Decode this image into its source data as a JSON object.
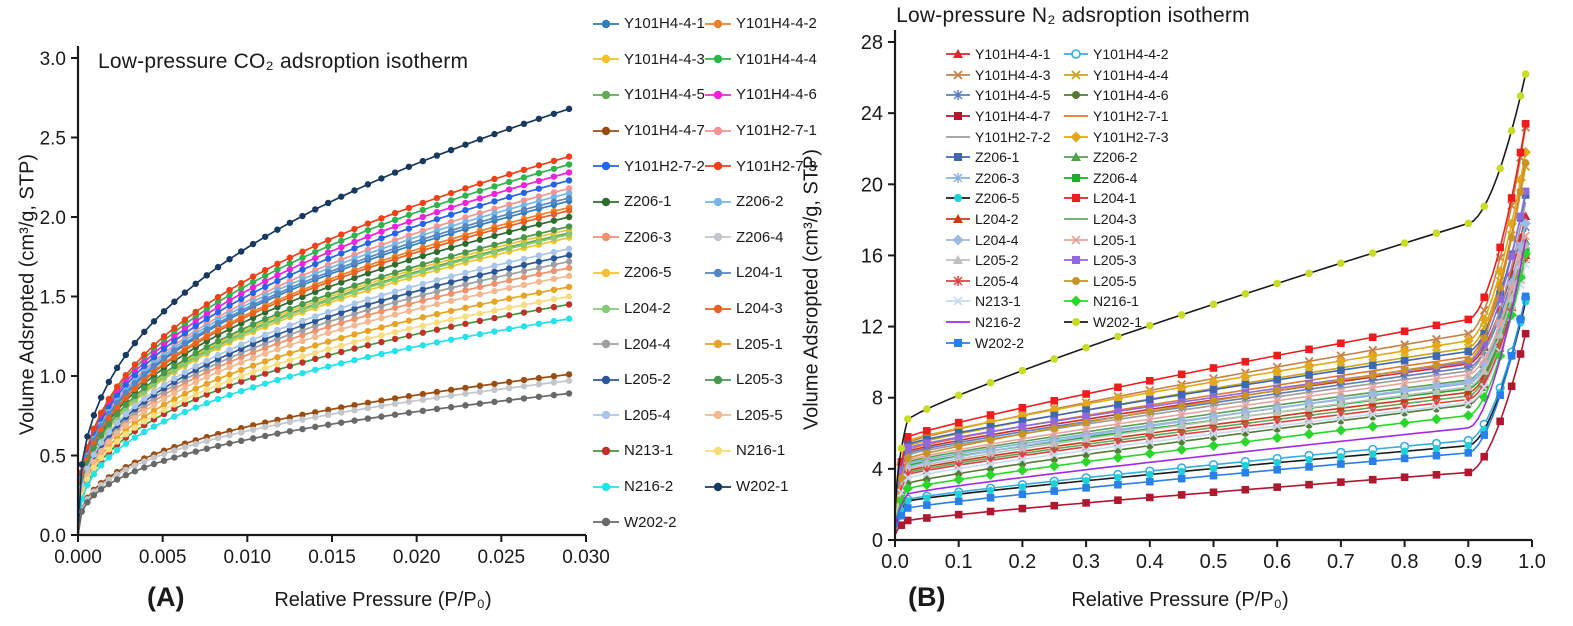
{
  "figure": {
    "panel_a": {
      "label": "(A)",
      "title": "Low-pressure CO₂ adsroption isotherm",
      "xlabel": "Relative Pressure (P/P₀)",
      "ylabel": "Volume Adsropted (cm³/g, STP)"
    },
    "panel_b": {
      "label": "(B)",
      "title": "Low-pressure N₂ adsroption isotherm",
      "xlabel": "Relative Pressure (P/P₀)",
      "ylabel": "Volume Adsropted (cm³/g, STP)"
    }
  },
  "chart_data": [
    {
      "panel": "A",
      "type": "line",
      "title": "Low-pressure CO₂ adsroption isotherm",
      "xlabel": "Relative Pressure (P/P₀)",
      "ylabel": "Volume Adsropted (cm³/g, STP)",
      "xlim": [
        0,
        0.03
      ],
      "ylim": [
        0,
        3.0
      ],
      "x_ticks": [
        0,
        0.005,
        0.01,
        0.015,
        0.02,
        0.025,
        0.03
      ],
      "x_tick_labels": [
        "0.000",
        "0.005",
        "0.010",
        "0.015",
        "0.020",
        "0.025",
        "0.030"
      ],
      "y_ticks": [
        0,
        0.5,
        1.0,
        1.5,
        2.0,
        2.5,
        3.0
      ],
      "y_tick_labels": [
        "0.0",
        "0.5",
        "1.0",
        "1.5",
        "2.0",
        "2.5",
        "3.0"
      ],
      "grid": false,
      "legend_position": "right-of-plot",
      "marker_note": "all series drawn with small filled circles; curves rise steeply from origin then flatten (power-law shape y = y_end*(x/0.029)^0.37)",
      "x_sample": [
        0.001,
        0.005,
        0.01,
        0.02,
        0.029
      ],
      "series": [
        {
          "name": "Y101H4-4-1",
          "color": "#2E7EC2",
          "marker": "circle",
          "y": [
            0.6,
            1.1,
            1.42,
            1.83,
            2.1
          ]
        },
        {
          "name": "Y101H4-4-2",
          "color": "#F07F28",
          "marker": "circle",
          "y": [
            0.59,
            1.08,
            1.39,
            1.79,
            2.06
          ]
        },
        {
          "name": "Y101H4-4-3",
          "color": "#F2C226",
          "marker": "circle",
          "y": [
            0.54,
            0.98,
            1.26,
            1.63,
            1.87
          ]
        },
        {
          "name": "Y101H4-4-4",
          "color": "#2DB44A",
          "marker": "circle",
          "y": [
            0.67,
            1.22,
            1.57,
            2.03,
            2.33
          ]
        },
        {
          "name": "Y101H4-4-5",
          "color": "#62AA56",
          "marker": "circle",
          "y": [
            0.55,
            0.99,
            1.28,
            1.65,
            1.9
          ]
        },
        {
          "name": "Y101H4-4-6",
          "color": "#EE22DD",
          "marker": "circle",
          "y": [
            0.66,
            1.19,
            1.54,
            1.99,
            2.28
          ]
        },
        {
          "name": "Y101H4-4-7",
          "color": "#9A4D12",
          "marker": "circle",
          "y": [
            0.29,
            0.53,
            0.68,
            0.88,
            1.01
          ]
        },
        {
          "name": "Y101H2-7-1",
          "color": "#F49391",
          "marker": "circle",
          "y": [
            0.63,
            1.14,
            1.47,
            1.9,
            2.18
          ]
        },
        {
          "name": "Y101H2-7-2",
          "color": "#2465E8",
          "marker": "circle",
          "y": [
            0.64,
            1.16,
            1.5,
            1.94,
            2.23
          ]
        },
        {
          "name": "Y101H2-7-3",
          "color": "#F04018",
          "marker": "circle",
          "y": [
            0.69,
            1.24,
            1.6,
            2.07,
            2.38
          ]
        },
        {
          "name": "Z206-1",
          "color": "#2D6B2F",
          "marker": "circle",
          "y": [
            0.58,
            1.04,
            1.35,
            1.74,
            2.0
          ]
        },
        {
          "name": "Z206-2",
          "color": "#74B6E8",
          "marker": "circle",
          "y": [
            0.62,
            1.12,
            1.45,
            1.87,
            2.15
          ]
        },
        {
          "name": "Z206-3",
          "color": "#F0916B",
          "marker": "circle",
          "y": [
            0.48,
            0.88,
            1.13,
            1.46,
            1.68
          ]
        },
        {
          "name": "Z206-4",
          "color": "#C3C7CB",
          "marker": "circle",
          "y": [
            0.28,
            0.51,
            0.65,
            0.84,
            0.97
          ]
        },
        {
          "name": "Z206-5",
          "color": "#F4C22E",
          "marker": "circle",
          "y": [
            0.55,
            1.0,
            1.29,
            1.67,
            1.92
          ]
        },
        {
          "name": "L204-1",
          "color": "#5586C6",
          "marker": "circle",
          "y": [
            0.61,
            1.11,
            1.43,
            1.85,
            2.12
          ]
        },
        {
          "name": "L204-2",
          "color": "#85CB77",
          "marker": "circle",
          "y": [
            0.54,
            0.99,
            1.27,
            1.65,
            1.89
          ]
        },
        {
          "name": "L204-3",
          "color": "#E8611E",
          "marker": "circle",
          "y": [
            0.59,
            1.06,
            1.38,
            1.78,
            2.04
          ]
        },
        {
          "name": "L204-4",
          "color": "#9CA0A4",
          "marker": "circle",
          "y": [
            0.5,
            0.9,
            1.16,
            1.5,
            1.72
          ]
        },
        {
          "name": "L205-1",
          "color": "#E8A224",
          "marker": "circle",
          "y": [
            0.45,
            0.81,
            1.05,
            1.36,
            1.56
          ]
        },
        {
          "name": "L205-2",
          "color": "#2B579D",
          "marker": "circle",
          "y": [
            0.51,
            0.92,
            1.19,
            1.53,
            1.76
          ]
        },
        {
          "name": "L205-3",
          "color": "#47984C",
          "marker": "circle",
          "y": [
            0.56,
            1.01,
            1.31,
            1.69,
            1.94
          ]
        },
        {
          "name": "L205-4",
          "color": "#AAC6E8",
          "marker": "circle",
          "y": [
            0.52,
            0.94,
            1.21,
            1.57,
            1.8
          ]
        },
        {
          "name": "L205-5",
          "color": "#F3B88F",
          "marker": "circle",
          "y": [
            0.47,
            0.85,
            1.1,
            1.42,
            1.63
          ]
        },
        {
          "name": "N213-1",
          "color": "#3C9C3C",
          "marker_color": "#C23128",
          "marker": "circle",
          "y": [
            0.42,
            0.76,
            0.98,
            1.26,
            1.45
          ]
        },
        {
          "name": "N216-1",
          "color": "#F8DD7C",
          "marker": "circle",
          "y": [
            0.43,
            0.78,
            1.01,
            1.31,
            1.5
          ]
        },
        {
          "name": "N216-2",
          "color": "#22E2EA",
          "marker": "circle",
          "y": [
            0.39,
            0.71,
            0.92,
            1.18,
            1.36
          ]
        },
        {
          "name": "W202-1",
          "color": "#17395F",
          "marker": "circle",
          "y": [
            0.77,
            1.4,
            1.81,
            2.33,
            2.68
          ]
        },
        {
          "name": "W202-2",
          "color": "#696969",
          "marker": "circle",
          "y": [
            0.26,
            0.46,
            0.6,
            0.78,
            0.89
          ]
        }
      ]
    },
    {
      "panel": "B",
      "type": "line",
      "title": "Low-pressure N₂ adsroption isotherm",
      "xlabel": "Relative Pressure (P/P₀)",
      "ylabel": "Volume Adsropted (cm³/g, STP)",
      "xlim": [
        0,
        1.0
      ],
      "ylim": [
        0,
        28
      ],
      "x_ticks": [
        0,
        0.1,
        0.2,
        0.3,
        0.4,
        0.5,
        0.6,
        0.7,
        0.8,
        0.9,
        1.0
      ],
      "x_tick_labels": [
        "0.0",
        "0.1",
        "0.2",
        "0.3",
        "0.4",
        "0.5",
        "0.6",
        "0.7",
        "0.8",
        "0.9",
        "1.0"
      ],
      "y_ticks": [
        0,
        4,
        8,
        12,
        16,
        20,
        24,
        28
      ],
      "y_tick_labels": [
        "0",
        "4",
        "8",
        "12",
        "16",
        "20",
        "24",
        "28"
      ],
      "grid": false,
      "legend_position": "upper-left-inside",
      "marker_note": "type-II isotherms: steep rise below P/P0=0.02, slow plateau, sharp upswing above 0.9 ending at 0.99",
      "x_sample": [
        0.02,
        0.1,
        0.3,
        0.5,
        0.7,
        0.9,
        0.99
      ],
      "series": [
        {
          "name": "Y101H4-4-1",
          "color": "#D42A2A",
          "marker": "triangle",
          "y": [
            5.0,
            5.6,
            6.8,
            7.9,
            8.9,
            9.9,
            18.2
          ]
        },
        {
          "name": "Y101H4-4-2",
          "color": "#35AEE2",
          "marker": "circleOpen",
          "y": [
            2.3,
            2.7,
            3.5,
            4.2,
            4.9,
            5.6,
            13.6
          ]
        },
        {
          "name": "Y101H4-4-3",
          "color": "#C98048",
          "marker": "x",
          "y": [
            5.5,
            6.2,
            7.7,
            9.1,
            10.4,
            11.6,
            23.2
          ]
        },
        {
          "name": "Y101H4-4-4",
          "color": "#CDA418",
          "marker": "x",
          "y": [
            5.3,
            6.0,
            7.3,
            8.5,
            9.7,
            10.8,
            21.0
          ]
        },
        {
          "name": "Y101H4-4-5",
          "color": "#5B7FBE",
          "marker": "asterisk",
          "y": [
            4.9,
            5.5,
            6.7,
            7.7,
            8.7,
            9.7,
            17.6
          ]
        },
        {
          "name": "Y101H4-4-6",
          "color": "#557A32",
          "marker": "circle",
          "y": [
            3.2,
            3.7,
            4.8,
            5.8,
            6.7,
            7.6,
            16.3
          ]
        },
        {
          "name": "Y101H4-4-7",
          "color": "#B01830",
          "marker": "square",
          "y": [
            1.1,
            1.4,
            2.1,
            2.7,
            3.3,
            3.8,
            11.6
          ]
        },
        {
          "name": "Y101H2-7-1",
          "color": "#E07830",
          "marker": "none",
          "y": [
            5.1,
            5.7,
            7.0,
            8.2,
            9.2,
            10.3,
            21.4
          ]
        },
        {
          "name": "Y101H2-7-2",
          "color": "#9B9B9B",
          "marker": "none",
          "y": [
            4.8,
            5.4,
            6.5,
            7.6,
            8.5,
            9.5,
            19.0
          ]
        },
        {
          "name": "Y101H2-7-3",
          "color": "#E2A818",
          "marker": "diamond",
          "y": [
            5.6,
            6.3,
            7.6,
            8.9,
            10.1,
            11.2,
            21.8
          ]
        },
        {
          "name": "Z206-1",
          "color": "#3E68B2",
          "marker": "square",
          "y": [
            5.4,
            6.0,
            7.3,
            8.5,
            9.5,
            10.6,
            19.4
          ]
        },
        {
          "name": "Z206-2",
          "color": "#52A050",
          "marker": "triangle",
          "y": [
            4.4,
            5.0,
            6.1,
            7.1,
            8.1,
            9.0,
            16.8
          ]
        },
        {
          "name": "Z206-3",
          "color": "#85B3DE",
          "marker": "asterisk",
          "y": [
            4.3,
            4.8,
            5.9,
            6.9,
            7.9,
            8.8,
            16.5
          ]
        },
        {
          "name": "Z206-4",
          "color": "#18B028",
          "marker": "square",
          "y": [
            4.2,
            4.7,
            5.8,
            6.7,
            7.6,
            8.5,
            16.2
          ]
        },
        {
          "name": "Z206-5",
          "color": "#20D0D8",
          "line_color": "#1a1a1a",
          "marker": "circle",
          "y": [
            2.2,
            2.6,
            3.3,
            4.0,
            4.7,
            5.3,
            13.4
          ]
        },
        {
          "name": "L204-1",
          "color": "#EE1C1C",
          "marker": "square",
          "y": [
            5.8,
            6.6,
            8.2,
            9.7,
            11.1,
            12.4,
            23.4
          ]
        },
        {
          "name": "L204-2",
          "color": "#CC3A14",
          "marker": "triangle",
          "y": [
            3.9,
            4.4,
            5.5,
            6.5,
            7.4,
            8.3,
            16.0
          ]
        },
        {
          "name": "L204-3",
          "color": "#60A860",
          "marker": "none",
          "y": [
            3.8,
            4.3,
            5.4,
            6.3,
            7.2,
            8.1,
            16.4
          ]
        },
        {
          "name": "L204-4",
          "color": "#9DB8E2",
          "marker": "diamond",
          "y": [
            4.1,
            4.7,
            5.9,
            6.9,
            7.9,
            8.9,
            17.8
          ]
        },
        {
          "name": "L205-1",
          "color": "#E8A49C",
          "marker": "x",
          "y": [
            4.5,
            5.1,
            6.3,
            7.3,
            8.3,
            9.3,
            17.1
          ]
        },
        {
          "name": "L205-2",
          "color": "#C0C0C0",
          "marker": "triangle",
          "y": [
            4.0,
            4.6,
            5.7,
            6.7,
            7.7,
            8.6,
            16.6
          ]
        },
        {
          "name": "L205-3",
          "color": "#9068E0",
          "marker": "square",
          "y": [
            5.2,
            5.8,
            7.0,
            8.0,
            9.0,
            10.0,
            19.6
          ]
        },
        {
          "name": "L205-4",
          "color": "#E04040",
          "marker": "asterisk",
          "y": [
            3.7,
            4.2,
            5.2,
            6.2,
            7.0,
            7.9,
            15.8
          ]
        },
        {
          "name": "L205-5",
          "color": "#C89428",
          "marker": "circle",
          "y": [
            4.6,
            5.3,
            6.6,
            7.8,
            9.0,
            10.1,
            21.2
          ]
        },
        {
          "name": "N213-1",
          "color": "#C8DCF0",
          "marker": "x",
          "y": [
            3.5,
            4.0,
            5.0,
            6.0,
            6.8,
            7.7,
            15.5
          ]
        },
        {
          "name": "N216-1",
          "color": "#28D828",
          "marker": "diamond",
          "y": [
            2.9,
            3.4,
            4.4,
            5.3,
            6.2,
            7.0,
            16.1
          ]
        },
        {
          "name": "N216-2",
          "color": "#A428E8",
          "marker": "none",
          "y": [
            2.6,
            3.0,
            4.0,
            4.8,
            5.5,
            6.3,
            16.9
          ]
        },
        {
          "name": "W202-1",
          "color": "#C8DC28",
          "line_color": "#1a1a1a",
          "marker": "circle",
          "y": [
            6.8,
            8.1,
            10.8,
            13.3,
            15.6,
            17.8,
            26.2
          ]
        },
        {
          "name": "W202-2",
          "color": "#2880E8",
          "marker": "square",
          "y": [
            1.8,
            2.2,
            2.9,
            3.6,
            4.3,
            4.9,
            13.7
          ]
        }
      ]
    }
  ]
}
